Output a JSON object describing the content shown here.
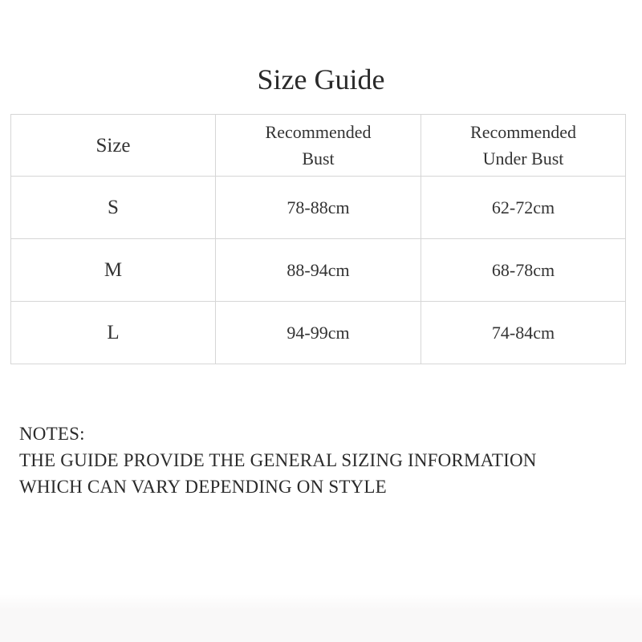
{
  "title": "Size Guide",
  "table": {
    "headers": [
      "Size",
      "Recommended Bust",
      "Recommended Under Bust"
    ],
    "headers_lines": [
      [
        "Size"
      ],
      [
        "Recommended",
        "Bust"
      ],
      [
        "Recommended",
        "Under Bust"
      ]
    ],
    "rows": [
      {
        "size": "S",
        "bust": "78-88cm",
        "under_bust": "62-72cm"
      },
      {
        "size": "M",
        "bust": "88-94cm",
        "under_bust": "68-78cm"
      },
      {
        "size": "L",
        "bust": "94-99cm",
        "under_bust": "74-84cm"
      }
    ]
  },
  "notes": {
    "label": "NOTES:",
    "lines": [
      "THE GUIDE PROVIDE THE GENERAL SIZING INFORMATION",
      "WHICH CAN VARY DEPENDING ON STYLE"
    ]
  }
}
